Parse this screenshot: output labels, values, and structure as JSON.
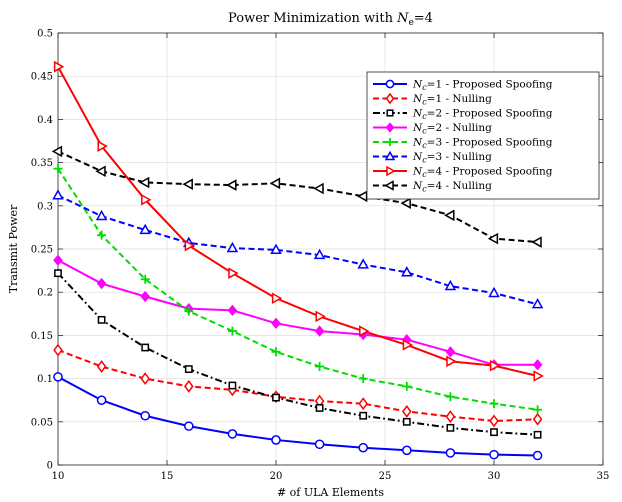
{
  "chart_data": {
    "type": "line",
    "title_prefix": "Power Minimization with ",
    "title_var": "N",
    "title_sub": "e",
    "title_suffix": "=4",
    "xlabel": "# of ULA Elements",
    "ylabel": "Transmit Power",
    "xlim": [
      10,
      35
    ],
    "ylim": [
      0,
      0.5
    ],
    "xticks": [
      10,
      15,
      20,
      25,
      30,
      35
    ],
    "xtick_labels": [
      "10",
      "15",
      "20",
      "25",
      "30",
      "35"
    ],
    "yticks": [
      0,
      0.05,
      0.1,
      0.15,
      0.2,
      0.25,
      0.3,
      0.35,
      0.4,
      0.45,
      0.5
    ],
    "ytick_labels": [
      "0",
      "0.05",
      "0.1",
      "0.15",
      "0.2",
      "0.25",
      "0.3",
      "0.35",
      "0.4",
      "0.45",
      "0.5"
    ],
    "grid": true,
    "legend_position": "top-right",
    "x": [
      10,
      12,
      14,
      16,
      18,
      20,
      22,
      24,
      26,
      28,
      30,
      32
    ],
    "series": [
      {
        "legend_var": "N",
        "legend_sub": "c",
        "legend_rest": "=1 - Proposed Spoofing",
        "color": "#0000ff",
        "dash": "solid",
        "marker": "circle",
        "values": [
          0.102,
          0.075,
          0.057,
          0.045,
          0.036,
          0.029,
          0.024,
          0.02,
          0.017,
          0.014,
          0.012,
          0.011
        ]
      },
      {
        "legend_var": "N",
        "legend_sub": "c",
        "legend_rest": "=1 - Nulling",
        "color": "#ff0000",
        "dash": "dashed",
        "marker": "diamond",
        "values": [
          0.133,
          0.114,
          0.1,
          0.091,
          0.087,
          0.079,
          0.074,
          0.071,
          0.062,
          0.056,
          0.051,
          0.053
        ]
      },
      {
        "legend_var": "N",
        "legend_sub": "c",
        "legend_rest": "=2 - Proposed Spoofing",
        "color": "#000000",
        "dash": "dashdot",
        "marker": "square",
        "values": [
          0.222,
          0.168,
          0.136,
          0.111,
          0.092,
          0.078,
          0.066,
          0.057,
          0.05,
          0.043,
          0.038,
          0.035
        ]
      },
      {
        "legend_var": "N",
        "legend_sub": "c",
        "legend_rest": "=2 - Nulling",
        "color": "#ff00ff",
        "dash": "solid",
        "marker": "diamond-filled",
        "values": [
          0.237,
          0.21,
          0.195,
          0.181,
          0.179,
          0.164,
          0.155,
          0.151,
          0.145,
          0.131,
          0.116,
          0.116
        ]
      },
      {
        "legend_var": "N",
        "legend_sub": "c",
        "legend_rest": "=3 - Proposed Spoofing",
        "color": "#00dd00",
        "dash": "dashed",
        "marker": "plus",
        "values": [
          0.343,
          0.266,
          0.215,
          0.178,
          0.155,
          0.131,
          0.114,
          0.1,
          0.091,
          0.079,
          0.071,
          0.064
        ]
      },
      {
        "legend_var": "N",
        "legend_sub": "c",
        "legend_rest": "=3 - Nulling",
        "color": "#0000ff",
        "dash": "dashed",
        "marker": "triangle-up",
        "values": [
          0.312,
          0.288,
          0.272,
          0.257,
          0.251,
          0.249,
          0.243,
          0.232,
          0.223,
          0.207,
          0.199,
          0.186
        ]
      },
      {
        "legend_var": "N",
        "legend_sub": "c",
        "legend_rest": "=4 - Proposed Spoofing",
        "color": "#ff0000",
        "dash": "solid",
        "marker": "triangle-right",
        "values": [
          0.461,
          0.369,
          0.307,
          0.254,
          0.222,
          0.193,
          0.172,
          0.155,
          0.139,
          0.12,
          0.115,
          0.103
        ]
      },
      {
        "legend_var": "N",
        "legend_sub": "c",
        "legend_rest": "=4 - Nulling",
        "color": "#000000",
        "dash": "dashed",
        "marker": "triangle-left",
        "values": [
          0.363,
          0.34,
          0.327,
          0.325,
          0.324,
          0.326,
          0.32,
          0.311,
          0.303,
          0.289,
          0.262,
          0.258
        ]
      }
    ]
  }
}
